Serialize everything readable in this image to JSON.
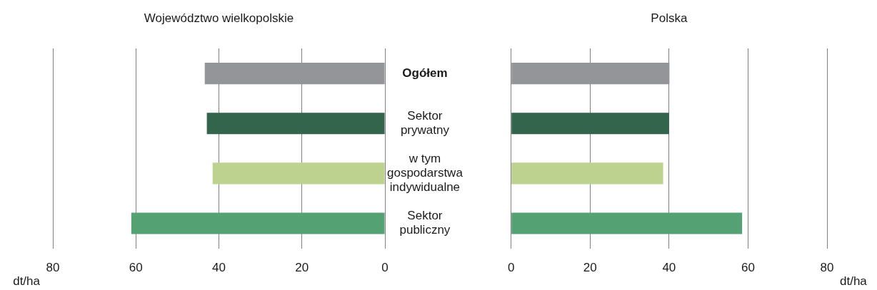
{
  "chart_data": [
    {
      "type": "bar",
      "orientation": "horizontal",
      "title": "Województwo wielkopolskie",
      "xlabel": "dt/ha",
      "categories": [
        "Ogółem",
        "Sektor prywatny",
        "w tym gospodarstwa indywidualne",
        "Sektor publiczny"
      ],
      "values": [
        43.4,
        42.9,
        41.5,
        61.1
      ],
      "colors": [
        "#949598",
        "#32654c",
        "#bed290",
        "#54a174"
      ],
      "xlim": [
        80,
        0
      ],
      "xticks": [
        80,
        60,
        40,
        20,
        0
      ],
      "grid": "x"
    },
    {
      "type": "bar",
      "orientation": "horizontal",
      "title": "Polska",
      "xlabel": "dt/ha",
      "categories": [
        null,
        null,
        null,
        null
      ],
      "values": [
        40.1,
        40.0,
        38.5,
        58.5
      ],
      "colors": [
        "#949598",
        "#32654c",
        "#bed290",
        "#54a174"
      ],
      "xlim": [
        0,
        80
      ],
      "xticks": [
        0,
        20,
        40,
        60,
        80
      ],
      "grid": "x",
      "tick_labels": "x"
    }
  ]
}
